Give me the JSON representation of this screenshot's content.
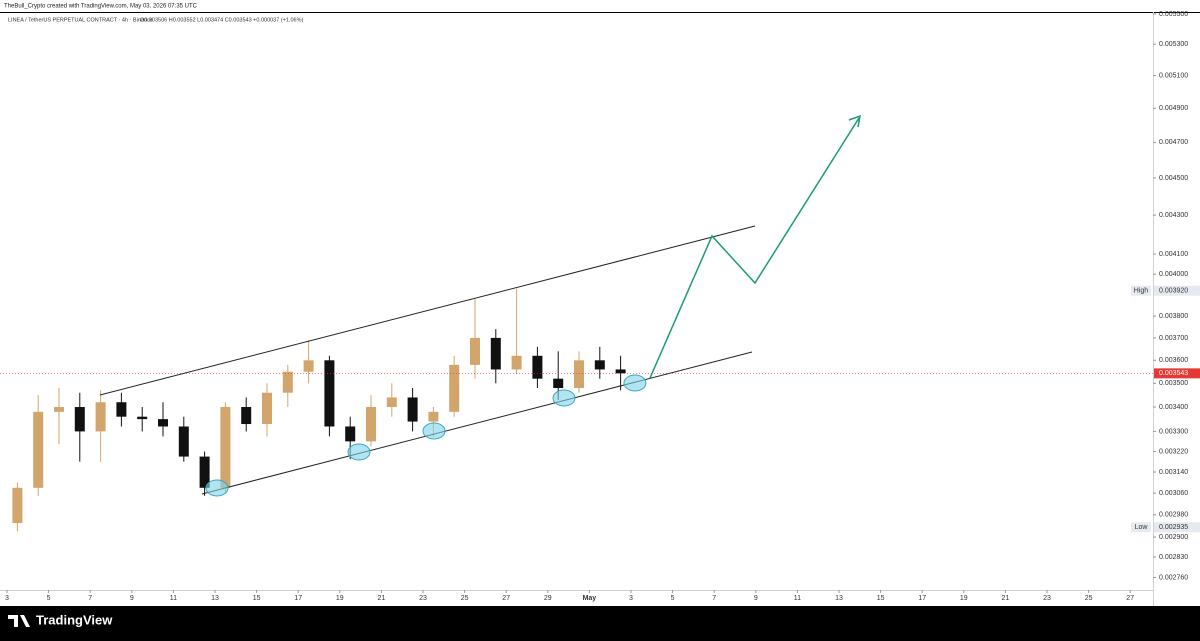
{
  "header": {
    "credit": "TheBull_Crypto created with TradingView.com, May 03, 2026 07:35 UTC",
    "symbol": "LINEA / TetherUS PERPETUAL CONTRACT · 4h · Binance",
    "ohlc": "O0.003506 H0.003552 L0.003474 C0.003543 +0.000037 (+1.06%)"
  },
  "chart_data": {
    "type": "candlestick",
    "log_scale": true,
    "up_color": "#d1a56b",
    "down_color": "#111111",
    "x": [
      0.5,
      1.5,
      2.5,
      3.5,
      4.5,
      5.5,
      6.5,
      7.5,
      8.5,
      9.5,
      10.5,
      11.5,
      12.5,
      13.5,
      14.5,
      15.5,
      16.5,
      17.5,
      18.5,
      19.5,
      20.5,
      21.5,
      22.5,
      23.5,
      24.5,
      25.5,
      26.5,
      27.5,
      28.5,
      29.5
    ],
    "open": [
      0.00295,
      0.00308,
      0.00338,
      0.0034,
      0.0033,
      0.00342,
      0.00336,
      0.00335,
      0.00332,
      0.0032,
      0.00308,
      0.0034,
      0.00333,
      0.00346,
      0.00355,
      0.0036,
      0.00332,
      0.00326,
      0.0034,
      0.00344,
      0.00334,
      0.00338,
      0.00358,
      0.0037,
      0.00356,
      0.00362,
      0.00352,
      0.00348,
      0.0036,
      0.00356
    ],
    "high": [
      0.0031,
      0.00345,
      0.00348,
      0.00346,
      0.00347,
      0.00346,
      0.0034,
      0.00342,
      0.00336,
      0.00322,
      0.00342,
      0.00344,
      0.0035,
      0.00358,
      0.00369,
      0.00362,
      0.00336,
      0.00345,
      0.0035,
      0.00348,
      0.0034,
      0.00362,
      0.00388,
      0.00374,
      0.00393,
      0.00366,
      0.00364,
      0.00364,
      0.00366,
      0.00362
    ],
    "low": [
      0.00292,
      0.00305,
      0.00325,
      0.00318,
      0.00318,
      0.00332,
      0.0033,
      0.00328,
      0.00318,
      0.00305,
      0.00306,
      0.0033,
      0.00328,
      0.0034,
      0.0035,
      0.00328,
      0.00319,
      0.00324,
      0.00336,
      0.0033,
      0.00328,
      0.00336,
      0.00352,
      0.0035,
      0.00354,
      0.00348,
      0.00343,
      0.00346,
      0.00352,
      0.00347
    ],
    "close": [
      0.00308,
      0.00338,
      0.0034,
      0.0033,
      0.00342,
      0.00336,
      0.00335,
      0.00332,
      0.0032,
      0.00308,
      0.0034,
      0.00333,
      0.00346,
      0.00355,
      0.0036,
      0.00332,
      0.00326,
      0.0034,
      0.00344,
      0.00334,
      0.00338,
      0.00358,
      0.0037,
      0.00356,
      0.00362,
      0.00352,
      0.00348,
      0.0036,
      0.00356,
      0.003543
    ],
    "ylim": [
      0.002718,
      0.005513
    ],
    "yticks": [
      {
        "value": 0.0055,
        "label": "0.005500"
      },
      {
        "value": 0.0053,
        "label": "0.005300"
      },
      {
        "value": 0.0051,
        "label": "0.005100"
      },
      {
        "value": 0.0049,
        "label": "0.004900"
      },
      {
        "value": 0.0047,
        "label": "0.004700"
      },
      {
        "value": 0.0045,
        "label": "0.004500"
      },
      {
        "value": 0.0043,
        "label": "0.004300"
      },
      {
        "value": 0.0041,
        "label": "0.004100"
      },
      {
        "value": 0.004,
        "label": "0.004000"
      },
      {
        "value": 0.0038,
        "label": "0.003800"
      },
      {
        "value": 0.0037,
        "label": "0.003700"
      },
      {
        "value": 0.0036,
        "label": "0.003600"
      },
      {
        "value": 0.0035,
        "label": "0.003500"
      },
      {
        "value": 0.0034,
        "label": "0.003400"
      },
      {
        "value": 0.0033,
        "label": "0.003300"
      },
      {
        "value": 0.00322,
        "label": "0.003220"
      },
      {
        "value": 0.00314,
        "label": "0.003140"
      },
      {
        "value": 0.00306,
        "label": "0.003060"
      },
      {
        "value": 0.00298,
        "label": "0.002980"
      },
      {
        "value": 0.0029,
        "label": "0.002900"
      },
      {
        "value": 0.00283,
        "label": "0.002830"
      },
      {
        "value": 0.00276,
        "label": "0.002760"
      }
    ],
    "xlim": [
      -0.3365,
      55.096
    ],
    "xticks": [
      {
        "value": 0,
        "label": "3"
      },
      {
        "value": 2,
        "label": "5"
      },
      {
        "value": 4,
        "label": "7"
      },
      {
        "value": 6,
        "label": "9"
      },
      {
        "value": 8,
        "label": "11"
      },
      {
        "value": 10,
        "label": "13"
      },
      {
        "value": 12,
        "label": "15"
      },
      {
        "value": 14,
        "label": "17"
      },
      {
        "value": 16,
        "label": "19"
      },
      {
        "value": 18,
        "label": "21"
      },
      {
        "value": 20,
        "label": "23"
      },
      {
        "value": 22,
        "label": "25"
      },
      {
        "value": 24,
        "label": "27"
      },
      {
        "value": 26,
        "label": "29"
      },
      {
        "value": 28,
        "label": "May"
      },
      {
        "value": 30,
        "label": "3"
      },
      {
        "value": 32,
        "label": "5"
      },
      {
        "value": 34,
        "label": "7"
      },
      {
        "value": 36,
        "label": "9"
      },
      {
        "value": 38,
        "label": "11"
      },
      {
        "value": 40,
        "label": "13"
      },
      {
        "value": 42,
        "label": "15"
      },
      {
        "value": 44,
        "label": "17"
      },
      {
        "value": 46,
        "label": "19"
      },
      {
        "value": 48,
        "label": "21"
      },
      {
        "value": 50,
        "label": "23"
      },
      {
        "value": 52,
        "label": "25"
      },
      {
        "value": 54,
        "label": "27"
      }
    ],
    "last_price": 0.003543,
    "last_price_color": "#e53935",
    "high_marker": {
      "name": "High",
      "value": 0.00392,
      "label": "0.003920"
    },
    "low_marker": {
      "name": "Low",
      "value": 0.002935
    }
  },
  "footer": {
    "brand": "TradingView"
  }
}
